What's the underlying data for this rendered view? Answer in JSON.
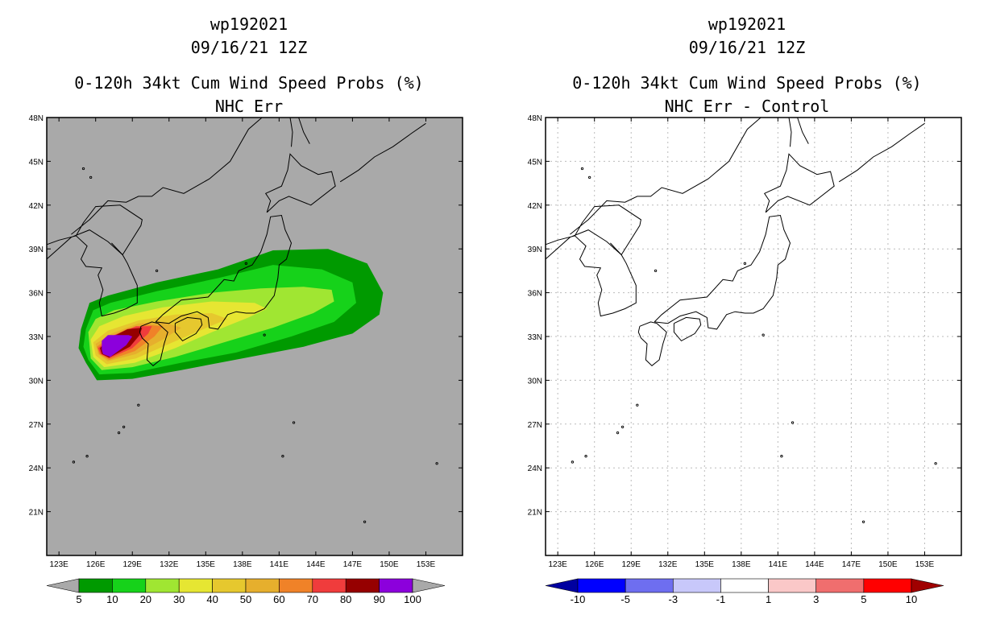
{
  "chart_data": [
    {
      "type": "heatmap",
      "title_lines": [
        "wp192021",
        "09/16/21 12Z",
        "0-120h 34kt Cum Wind Speed Probs (%)",
        "NHC Err"
      ],
      "x_ticks": [
        "123E",
        "126E",
        "129E",
        "132E",
        "135E",
        "138E",
        "141E",
        "144E",
        "147E",
        "150E",
        "153E"
      ],
      "y_ticks": [
        "48N",
        "45N",
        "42N",
        "39N",
        "36N",
        "33N",
        "30N",
        "27N",
        "24N",
        "21N"
      ],
      "xlim": [
        122,
        156
      ],
      "ylim": [
        18,
        48
      ],
      "background_color": "#a9a9a9",
      "colorbar": {
        "levels": [
          "5",
          "10",
          "20",
          "30",
          "40",
          "50",
          "60",
          "70",
          "80",
          "90",
          "100"
        ],
        "colors": [
          "#a9a9a9",
          "#009a00",
          "#16d21a",
          "#a0e632",
          "#e6e632",
          "#e6c82e",
          "#e6af2d",
          "#f08228",
          "#f03c3c",
          "#960000",
          "#8c00dc",
          "#a9a9a9"
        ]
      }
    },
    {
      "type": "heatmap",
      "title_lines": [
        "wp192021",
        "09/16/21 12Z",
        "0-120h 34kt Cum Wind Speed Probs (%)",
        "NHC Err - Control"
      ],
      "x_ticks": [
        "123E",
        "126E",
        "129E",
        "132E",
        "135E",
        "138E",
        "141E",
        "144E",
        "147E",
        "150E",
        "153E"
      ],
      "y_ticks": [
        "48N",
        "45N",
        "42N",
        "39N",
        "36N",
        "33N",
        "30N",
        "27N",
        "24N",
        "21N"
      ],
      "xlim": [
        122,
        156
      ],
      "ylim": [
        18,
        48
      ],
      "background_color": "#ffffff",
      "colorbar": {
        "levels": [
          "-10",
          "-5",
          "-3",
          "-1",
          "1",
          "3",
          "5",
          "10"
        ],
        "colors": [
          "#0000a0",
          "#0000ff",
          "#6e6ef0",
          "#c8c8fa",
          "#ffffff",
          "#fac8c8",
          "#f06e6e",
          "#ff0000",
          "#a00000"
        ]
      }
    }
  ]
}
